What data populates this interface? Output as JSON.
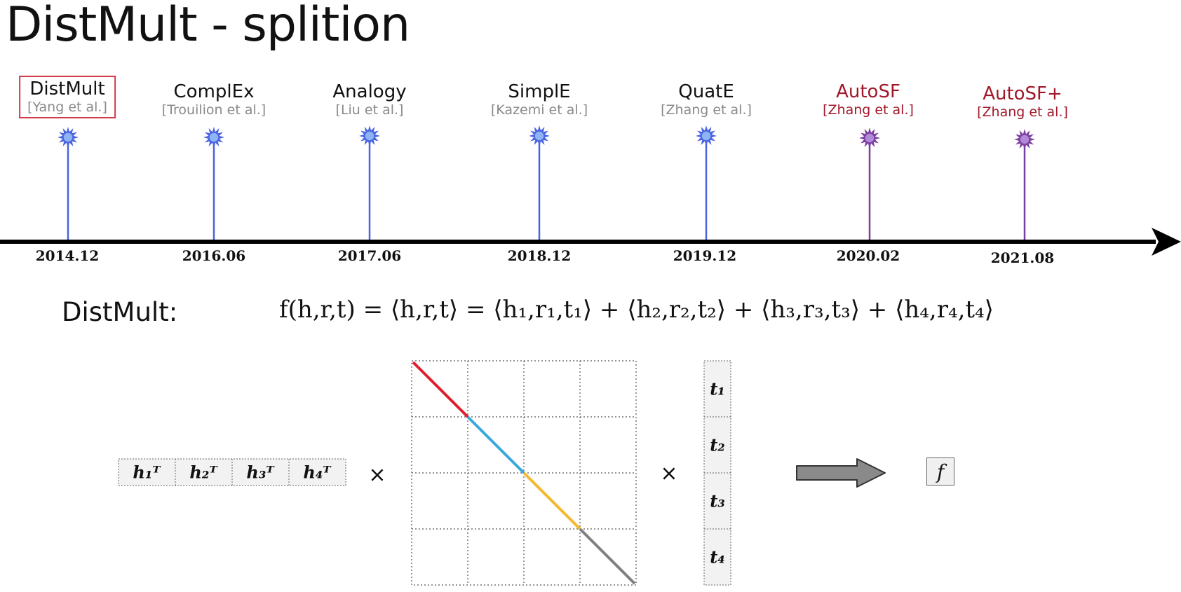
{
  "title": "DistMult - splition",
  "timeline": {
    "events": [
      {
        "name": "DistMult",
        "cite": "[Yang et al.]",
        "date": "2014.12",
        "highlight": "red-box",
        "color": "#4a64e0"
      },
      {
        "name": "ComplEx",
        "cite": "[Trouilion et al.]",
        "date": "2016.06",
        "color": "#4a64e0"
      },
      {
        "name": "Analogy",
        "cite": "[Liu et al.]",
        "date": "2017.06",
        "color": "#4a64e0"
      },
      {
        "name": "SimplE",
        "cite": "[Kazemi et al.]",
        "date": "2018.12",
        "color": "#4a64e0"
      },
      {
        "name": "QuatE",
        "cite": "[Zhang et al.]",
        "date": "2019.12",
        "color": "#4a64e0"
      },
      {
        "name": "AutoSF",
        "cite": "[Zhang et al.]",
        "date": "2020.02",
        "color": "#7a3fa0"
      },
      {
        "name": "AutoSF+",
        "cite": "[Zhang et al.]",
        "date": "2021.08",
        "color": "#7a3fa0"
      }
    ]
  },
  "model_label": "DistMult:",
  "formula": "f(h,r,t) = ⟨h,r,t⟩ = ⟨h₁,r₁,t₁⟩ + ⟨h₂,r₂,t₂⟩ + ⟨h₃,r₃,t₃⟩ + ⟨h₄,r₄,t₄⟩",
  "row_vector": [
    "h₁ᵀ",
    "h₂ᵀ",
    "h₃ᵀ",
    "h₄ᵀ"
  ],
  "column_vector": [
    "t₁",
    "t₂",
    "t₃",
    "t₄"
  ],
  "times_symbol": "×",
  "result": "f",
  "diagonal_colors": [
    "#e02030",
    "#3aa8e0",
    "#f5b830",
    "#808080"
  ]
}
